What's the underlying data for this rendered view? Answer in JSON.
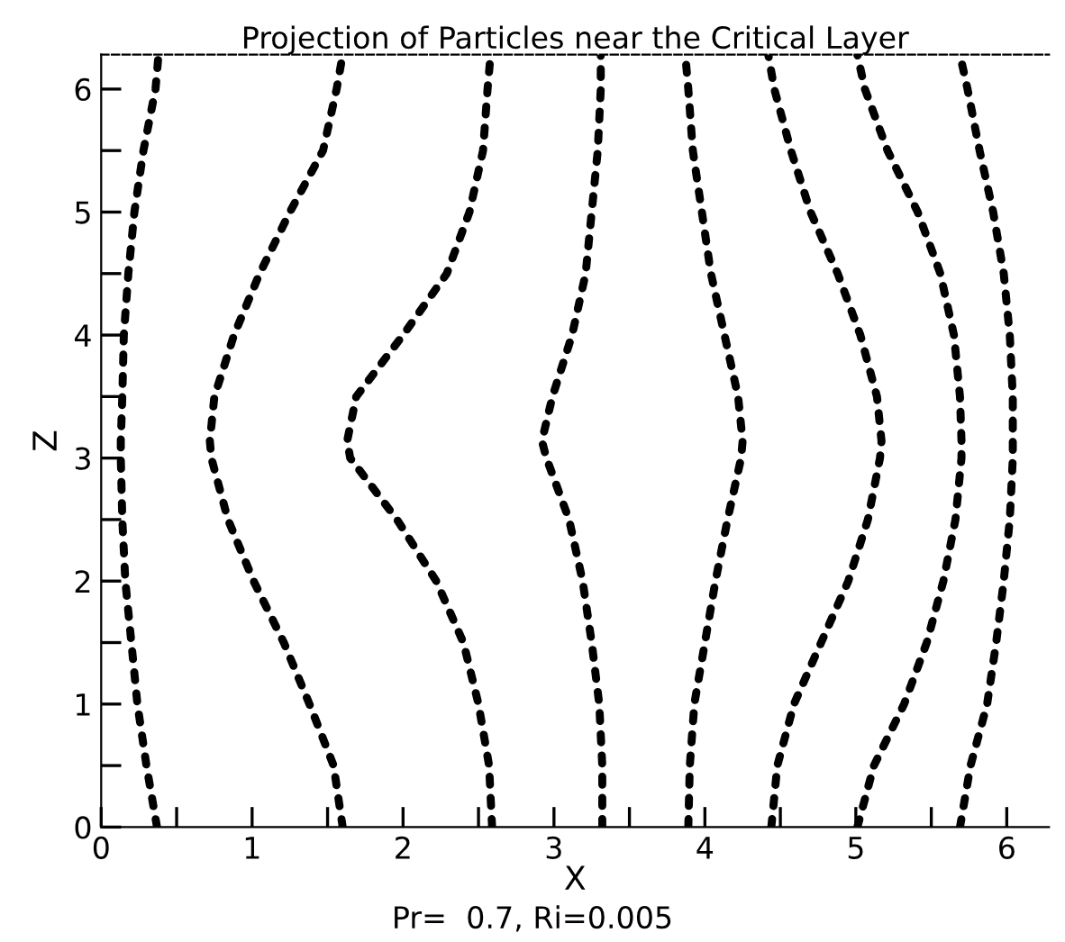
{
  "chart_data": {
    "type": "line",
    "title": "Projection of Particles near the Critical Layer",
    "xlabel": "X",
    "ylabel": "Z",
    "annotations": [
      "Pr=  0.7, Ri=0.005"
    ],
    "line_style": "dotted",
    "marker": "none",
    "grid": false,
    "legend": false,
    "xlim": [
      0,
      6.28
    ],
    "ylim": [
      0,
      6.28
    ],
    "xticks": [
      0,
      {
        "value": 0.5,
        "label": null
      },
      1,
      {
        "value": 1.5,
        "label": null
      },
      2,
      {
        "value": 2.5,
        "label": null
      },
      3,
      {
        "value": 3.5,
        "label": null
      },
      4,
      {
        "value": 4.5,
        "label": null
      },
      5,
      {
        "value": 5.5,
        "label": null
      },
      6
    ],
    "yticks": [
      0,
      {
        "value": 0.5,
        "label": null
      },
      1,
      {
        "value": 1.5,
        "label": null
      },
      2,
      {
        "value": 2.5,
        "label": null
      },
      3,
      {
        "value": 3.5,
        "label": null
      },
      4,
      {
        "value": 4.5,
        "label": null
      },
      5,
      {
        "value": 5.5,
        "label": null
      },
      6
    ],
    "series": [
      {
        "color": "#000000",
        "x": [
          0.37,
          0.3,
          0.24,
          0.2,
          0.16,
          0.14,
          0.13,
          0.13,
          0.14,
          0.15,
          0.18,
          0.22,
          0.28,
          0.36,
          0.38
        ],
        "values": [
          0,
          0.5,
          1,
          1.5,
          2,
          2.5,
          3,
          3.14,
          3.5,
          4,
          4.5,
          5,
          5.5,
          6,
          6.28
        ]
      },
      {
        "color": "#000000",
        "x": [
          1.6,
          1.54,
          1.38,
          1.21,
          1.01,
          0.84,
          0.73,
          0.72,
          0.75,
          0.88,
          1.05,
          1.25,
          1.47,
          1.56,
          1.6
        ],
        "values": [
          0,
          0.5,
          1,
          1.5,
          2,
          2.5,
          3,
          3.14,
          3.5,
          4,
          4.5,
          5,
          5.5,
          6,
          6.28
        ]
      },
      {
        "color": "#000000",
        "x": [
          2.59,
          2.57,
          2.5,
          2.4,
          2.22,
          1.96,
          1.65,
          1.63,
          1.69,
          2.0,
          2.29,
          2.44,
          2.53,
          2.56,
          2.58
        ],
        "values": [
          0,
          0.5,
          1,
          1.5,
          2,
          2.5,
          3,
          3.14,
          3.5,
          4,
          4.5,
          5,
          5.5,
          6,
          6.28
        ]
      },
      {
        "color": "#000000",
        "x": [
          3.32,
          3.32,
          3.3,
          3.25,
          3.19,
          3.1,
          2.95,
          2.92,
          2.99,
          3.12,
          3.21,
          3.25,
          3.29,
          3.31,
          3.31
        ],
        "values": [
          0,
          0.5,
          1,
          1.5,
          2,
          2.5,
          3,
          3.14,
          3.5,
          4,
          4.5,
          5,
          5.5,
          6,
          6.28
        ]
      },
      {
        "color": "#000000",
        "x": [
          3.89,
          3.9,
          3.93,
          4.0,
          4.07,
          4.15,
          4.24,
          4.25,
          4.22,
          4.13,
          4.04,
          3.98,
          3.92,
          3.89,
          3.87
        ],
        "values": [
          0,
          0.5,
          1,
          1.5,
          2,
          2.5,
          3,
          3.14,
          3.5,
          4,
          4.5,
          5,
          5.5,
          6,
          6.28
        ]
      },
      {
        "color": "#000000",
        "x": [
          4.44,
          4.48,
          4.59,
          4.77,
          4.95,
          5.08,
          5.16,
          5.17,
          5.14,
          5.03,
          4.88,
          4.7,
          4.57,
          4.46,
          4.42
        ],
        "values": [
          0,
          0.5,
          1,
          1.5,
          2,
          2.5,
          3,
          3.14,
          3.5,
          4,
          4.5,
          5,
          5.5,
          6,
          6.28
        ]
      },
      {
        "color": "#000000",
        "x": [
          5.01,
          5.12,
          5.32,
          5.47,
          5.58,
          5.66,
          5.7,
          5.7,
          5.69,
          5.65,
          5.56,
          5.41,
          5.21,
          5.06,
          5.01
        ],
        "values": [
          0,
          0.5,
          1,
          1.5,
          2,
          2.5,
          3,
          3.14,
          3.5,
          4,
          4.5,
          5,
          5.5,
          6,
          6.28
        ]
      },
      {
        "color": "#000000",
        "x": [
          5.69,
          5.76,
          5.87,
          5.93,
          5.98,
          6.02,
          6.04,
          6.04,
          6.04,
          6.02,
          5.98,
          5.91,
          5.82,
          5.74,
          5.69
        ],
        "values": [
          0,
          0.5,
          1,
          1.5,
          2,
          2.5,
          3,
          3.14,
          3.5,
          4,
          4.5,
          5,
          5.5,
          6,
          6.28
        ]
      }
    ]
  }
}
